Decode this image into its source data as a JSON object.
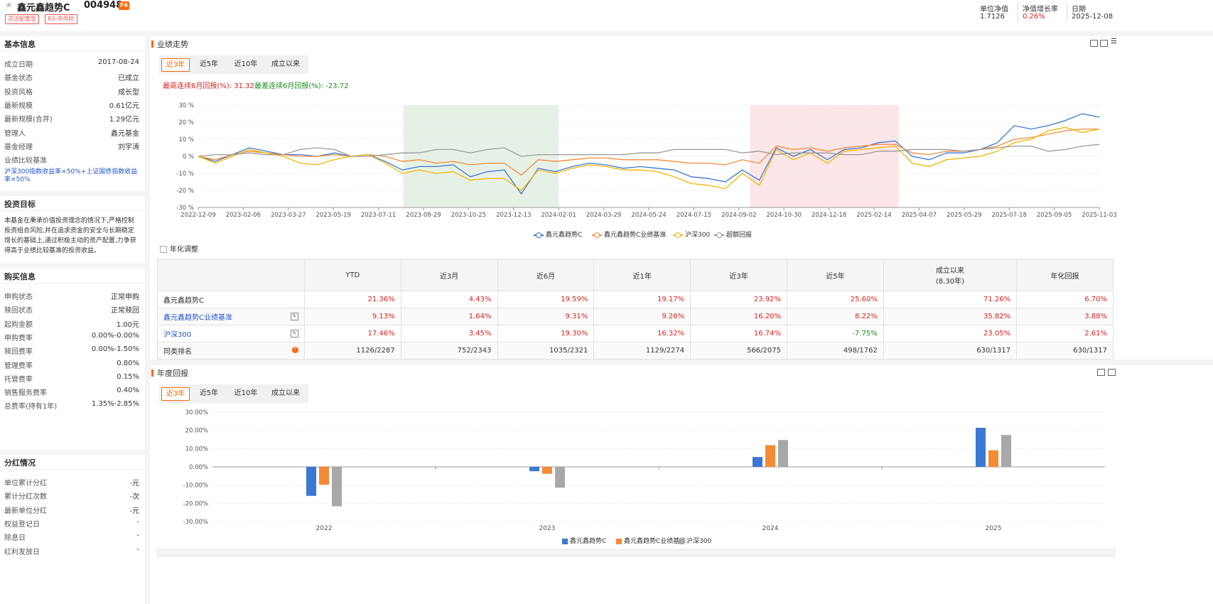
{
  "header": {
    "fund_name": "鑫元鑫趋势C",
    "fund_code": "004948",
    "badge": "F6",
    "tags": [
      "灵活配置型",
      "R3-中风险"
    ],
    "nav_label": "单位净值",
    "nav_value": "1.7126",
    "growth_label": "净值增长率",
    "growth_value": "0.26%",
    "date_label": "日期",
    "date_value": "2025-12-08"
  },
  "basic_info": {
    "title": "基本信息",
    "rows": [
      {
        "k": "成立日期",
        "v": "2017-08-24"
      },
      {
        "k": "基金状态",
        "v": "已成立"
      },
      {
        "k": "投资风格",
        "v": "成长型"
      },
      {
        "k": "最新规模",
        "v": "0.61亿元"
      },
      {
        "k": "最新规模(合并)",
        "v": "1.29亿元"
      },
      {
        "k": "管理人",
        "v": "鑫元基金"
      },
      {
        "k": "基金经理",
        "v": "刘宇涛"
      }
    ],
    "benchmark_label": "业绩比较基准",
    "benchmark_value": "沪深300指数收益率×50%+上证国债指数收益率×50%"
  },
  "objective": {
    "title": "投资目标",
    "text": "本基金在秉承价值投资理念的情况下,严格控制投资组合风险,并在追求资金的安全与长期稳定增长的基础上,通过积极主动的资产配置,力争获得高于业绩比较基准的投资收益。"
  },
  "purchase": {
    "title": "购买信息",
    "rows": [
      {
        "k": "申购状态",
        "v": "正常申购"
      },
      {
        "k": "赎回状态",
        "v": "正常赎回"
      },
      {
        "k": "起购金额",
        "v": "1.00元"
      },
      {
        "k": "申购费率",
        "v": "0.00%-0.00%"
      },
      {
        "k": "赎回费率",
        "v": "0.00%-1.50%"
      },
      {
        "k": "管理费率",
        "v": "0.80%"
      },
      {
        "k": "托管费率",
        "v": "0.15%"
      },
      {
        "k": "销售服务费率",
        "v": "0.40%"
      },
      {
        "k": "总费率(持有1年)",
        "v": "1.35%-2.85%"
      }
    ]
  },
  "dividend": {
    "title": "分红情况",
    "rows": [
      {
        "k": "单位累计分红",
        "v": "-元"
      },
      {
        "k": "累计分红次数",
        "v": "-次"
      },
      {
        "k": "最新单位分红",
        "v": "-元"
      },
      {
        "k": "权益登记日",
        "v": "-"
      },
      {
        "k": "除息日",
        "v": "-"
      },
      {
        "k": "红利发放日",
        "v": "-"
      }
    ]
  },
  "performance": {
    "title": "业绩走势",
    "tabs": [
      "近3年",
      "近5年",
      "近10年",
      "成立以来"
    ],
    "best_label": "最高连续6月回报(%): 31.32",
    "worst_label": "最差连续6月回报(%): -23.72",
    "annualize_label": "年化调整",
    "legend": [
      "鑫元鑫趋势C",
      "鑫元鑫趋势C业绩基准",
      "沪深300",
      "超额回报"
    ]
  },
  "perf_table": {
    "headers": [
      "",
      "YTD",
      "近3月",
      "近6月",
      "近1年",
      "近3年",
      "近5年",
      "成立以来\n(8.30年)",
      "年化回报"
    ],
    "rows": [
      {
        "name": "鑫元鑫趋势C",
        "cells": [
          "21.36%",
          "4.43%",
          "19.59%",
          "19.17%",
          "23.92%",
          "25.60%",
          "71.26%",
          "6.70%"
        ]
      },
      {
        "name": "鑫元鑫趋势C业绩基准",
        "cells": [
          "9.13%",
          "1.64%",
          "9.31%",
          "9.26%",
          "16.20%",
          "8.22%",
          "35.82%",
          "3.88%"
        ]
      },
      {
        "name": "沪深300",
        "cells": [
          "17.46%",
          "3.45%",
          "19.30%",
          "16.32%",
          "16.74%",
          "-7.75%",
          "23.05%",
          "2.61%"
        ]
      },
      {
        "name": "同类排名",
        "cells": [
          "1126/2287",
          "752/2343",
          "1035/2321",
          "1129/2274",
          "566/2075",
          "498/1762",
          "630/1317",
          "630/1317"
        ]
      }
    ]
  },
  "annual": {
    "title": "年度回报",
    "tabs": [
      "近3年",
      "近5年",
      "近10年",
      "成立以来"
    ]
  },
  "colors": {
    "fund": "#3a78d4",
    "benchmark": "#f58a35",
    "hs300": "#f5b400",
    "excess": "#999999",
    "annual_hs300": "#a8a8a8",
    "accent": "#ff6600"
  },
  "chart_data": [
    {
      "type": "line",
      "title": "",
      "x_ticks": [
        "2022-12-09",
        "2023-02-06",
        "2023-03-27",
        "2023-05-19",
        "2023-07-11",
        "2023-08-29",
        "2023-10-25",
        "2023-12-13",
        "2024-02-01",
        "2024-03-29",
        "2024-05-24",
        "2024-07-15",
        "2024-09-02",
        "2024-10-30",
        "2024-12-18",
        "2025-02-14",
        "2025-04-07",
        "2025-05-29",
        "2025-07-18",
        "2025-09-05",
        "2025-11-03"
      ],
      "y_ticks": [
        "30 %",
        "20 %",
        "10 %",
        "0 %",
        "-10 %",
        "-20 %",
        "-30 %"
      ],
      "ylim": [
        -30,
        30
      ],
      "shaded_regions": [
        {
          "from": "2023-08-07",
          "to": "2024-02-01",
          "color": "green"
        },
        {
          "from": "2024-09-10",
          "to": "2025-03-10",
          "color": "red"
        }
      ],
      "series": [
        {
          "name": "鑫元鑫趋势C",
          "values": [
            0,
            -3,
            1,
            5,
            3,
            1,
            1,
            0,
            2,
            0,
            1,
            -3,
            -8,
            -6,
            -6,
            -5,
            -12,
            -9,
            -8,
            -22,
            -7,
            -9,
            -6,
            -4,
            -5,
            -7,
            -6,
            -7,
            -8,
            -12,
            -13,
            -15,
            -8,
            -14,
            5,
            0,
            4,
            -2,
            4,
            5,
            8,
            9,
            0,
            -2,
            2,
            2,
            4,
            8,
            18,
            16,
            18,
            21,
            25,
            23
          ]
        },
        {
          "name": "鑫元鑫趋势C业绩基准",
          "values": [
            0,
            -2,
            1,
            3,
            2,
            1,
            0,
            0,
            1,
            0,
            1,
            0,
            -3,
            -2,
            -4,
            -3,
            -5,
            -4,
            -4,
            -11,
            -2,
            -3,
            -2,
            -1,
            -1,
            -2,
            -2,
            -2,
            -3,
            -4,
            -4,
            -5,
            -2,
            -4,
            6,
            4,
            5,
            3,
            5,
            6,
            7,
            7,
            2,
            1,
            3,
            3,
            4,
            6,
            10,
            11,
            13,
            15,
            16,
            16
          ]
        },
        {
          "name": "沪深300",
          "values": [
            0,
            -4,
            0,
            4,
            2,
            0,
            -4,
            -5,
            -2,
            0,
            1,
            -4,
            -10,
            -8,
            -10,
            -9,
            -14,
            -13,
            -13,
            -20,
            -8,
            -10,
            -7,
            -5,
            -6,
            -8,
            -8,
            -9,
            -12,
            -16,
            -17,
            -19,
            -10,
            -17,
            4,
            -2,
            2,
            -4,
            3,
            4,
            5,
            6,
            -4,
            -6,
            -2,
            -1,
            0,
            3,
            8,
            10,
            15,
            17,
            14,
            16
          ]
        },
        {
          "name": "超额回报",
          "values": [
            0,
            1,
            1,
            2,
            1,
            1,
            4,
            5,
            4,
            0,
            0,
            1,
            2,
            2,
            4,
            4,
            2,
            4,
            5,
            0,
            1,
            1,
            1,
            1,
            1,
            1,
            2,
            2,
            4,
            4,
            4,
            4,
            2,
            3,
            1,
            2,
            2,
            2,
            1,
            1,
            3,
            3,
            4,
            4,
            4,
            3,
            4,
            5,
            6,
            6,
            3,
            4,
            6,
            7
          ]
        }
      ]
    },
    {
      "type": "bar",
      "categories": [
        "2022",
        "2023",
        "2024",
        "2025"
      ],
      "y_ticks": [
        "30.00%",
        "20.00%",
        "10.00%",
        "0.00%",
        "-10.00%",
        "-20.00%",
        "-30.00%"
      ],
      "ylim": [
        -30,
        30
      ],
      "series": [
        {
          "name": "鑫元鑫趋势C",
          "values": [
            -15.9,
            -2.4,
            5.4,
            21.4
          ]
        },
        {
          "name": "鑫元鑫趋势C业绩基准",
          "values": [
            -9.8,
            -3.8,
            11.9,
            9.1
          ]
        },
        {
          "name": "沪深300",
          "values": [
            -21.6,
            -11.4,
            14.7,
            17.5
          ]
        }
      ]
    }
  ]
}
